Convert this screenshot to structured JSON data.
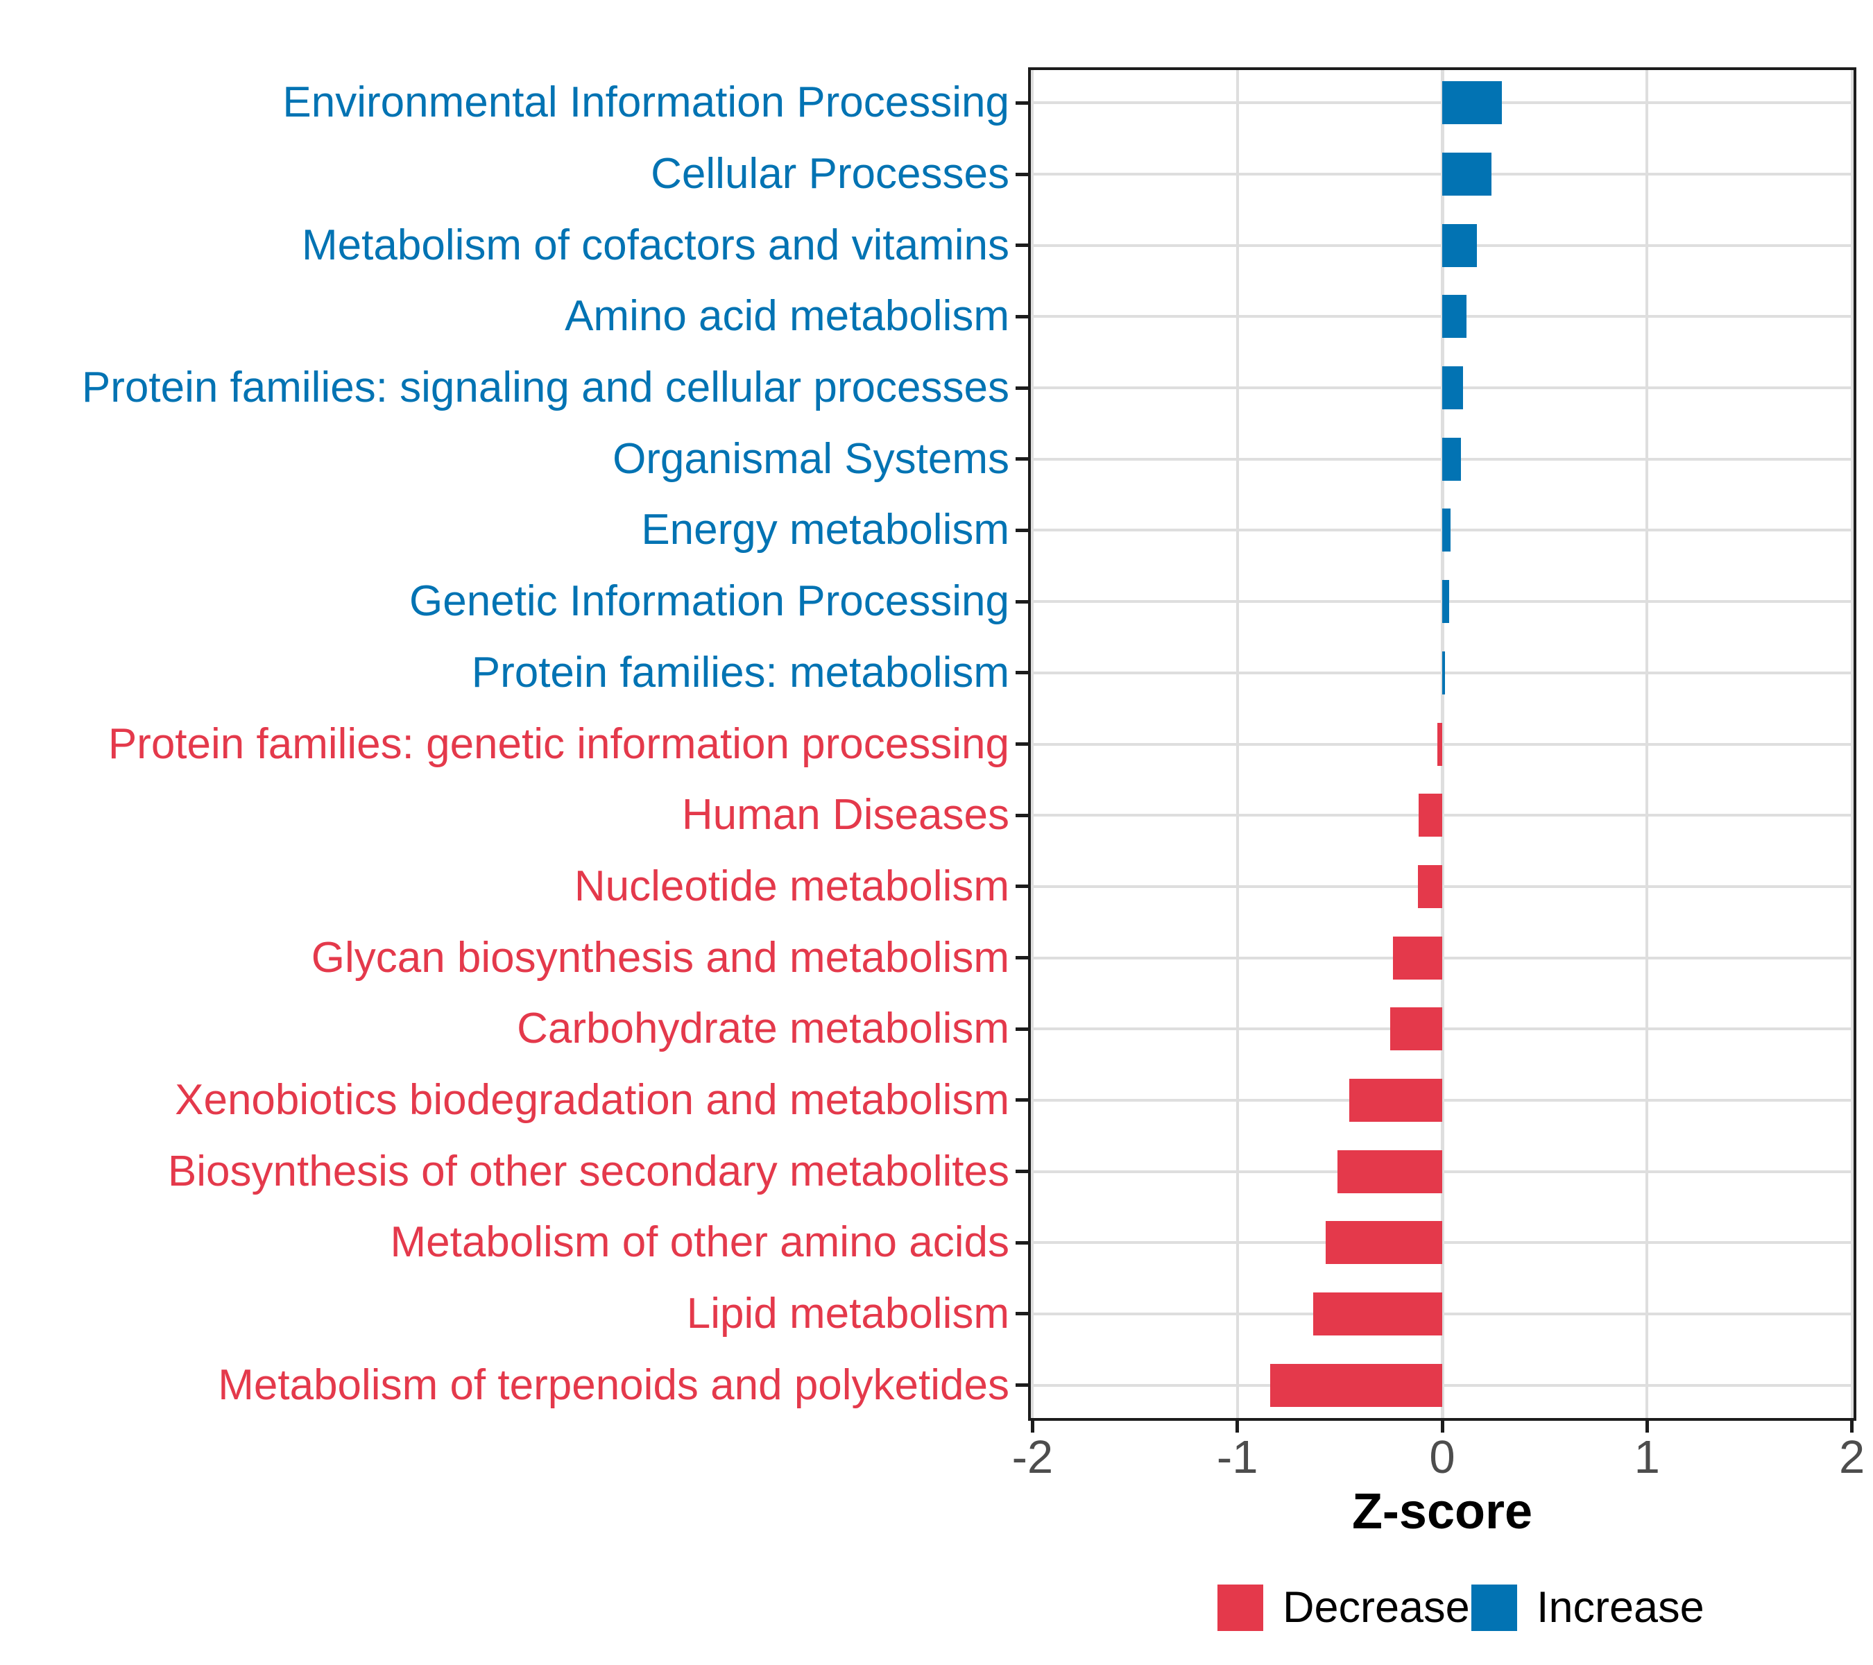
{
  "chart_data": {
    "type": "bar",
    "orientation": "horizontal",
    "xlabel": "Z-score",
    "xlim": [
      -2.02,
      2.02
    ],
    "x_ticks": [
      -2,
      -1,
      0,
      1,
      2
    ],
    "x_tick_labels": [
      "-2",
      "-1",
      "0",
      "1",
      "2"
    ],
    "grid": true,
    "legend_position": "bottom",
    "categories": [
      "Environmental Information Processing",
      "Cellular Processes",
      "Metabolism of cofactors and vitamins",
      "Amino acid metabolism",
      "Protein families: signaling and cellular processes",
      "Organismal Systems",
      "Energy metabolism",
      "Genetic Information Processing",
      "Protein families: metabolism",
      "Protein families: genetic information processing",
      "Human Diseases",
      "Nucleotide metabolism",
      "Glycan biosynthesis and metabolism",
      "Carbohydrate metabolism",
      "Xenobiotics biodegradation and metabolism",
      "Biosynthesis of other secondary metabolites",
      "Metabolism of other amino acids",
      "Lipid metabolism",
      "Metabolism of terpenoids and polyketides"
    ],
    "values": [
      0.29,
      0.24,
      0.17,
      0.12,
      0.1,
      0.09,
      0.04,
      0.035,
      0.015,
      -0.025,
      -0.115,
      -0.12,
      -0.24,
      -0.255,
      -0.455,
      -0.51,
      -0.57,
      -0.63,
      -0.84
    ],
    "directions": [
      "increase",
      "increase",
      "increase",
      "increase",
      "increase",
      "increase",
      "increase",
      "increase",
      "increase",
      "decrease",
      "decrease",
      "decrease",
      "decrease",
      "decrease",
      "decrease",
      "decrease",
      "decrease",
      "decrease",
      "decrease"
    ],
    "colors": {
      "increase": "#0273B3",
      "decrease": "#E4394B"
    },
    "legend": [
      {
        "label": "Decrease",
        "color": "#E4394B"
      },
      {
        "label": "Increase",
        "color": "#0273B3"
      }
    ]
  }
}
